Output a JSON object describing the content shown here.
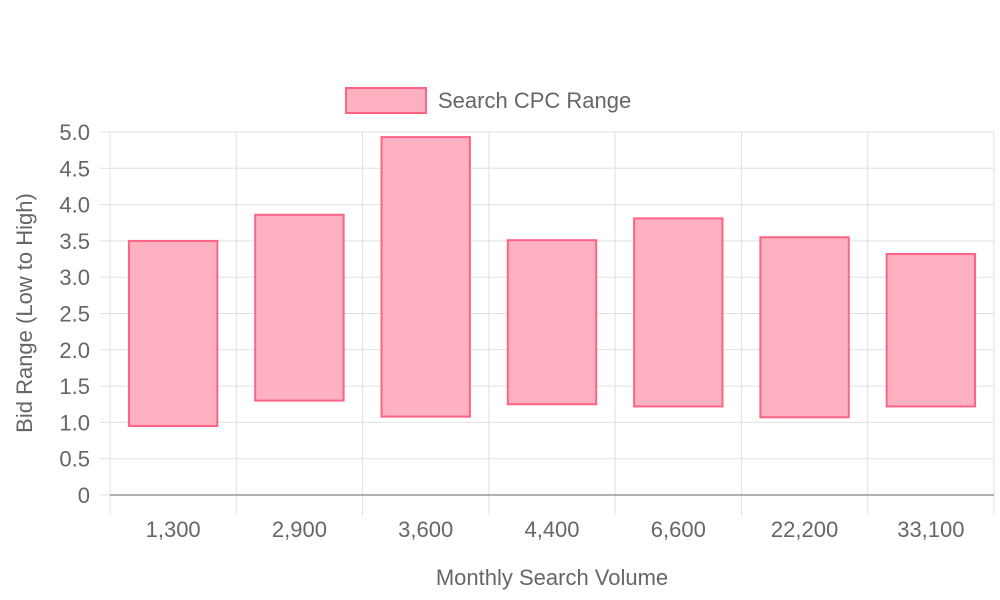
{
  "chart_data": {
    "type": "bar",
    "subtype": "floating-range",
    "categories": [
      "1,300",
      "2,900",
      "3,600",
      "4,400",
      "6,600",
      "22,200",
      "33,100"
    ],
    "series": [
      {
        "name": "Search CPC Range",
        "low": [
          0.95,
          1.3,
          1.08,
          1.25,
          1.22,
          1.07,
          1.22
        ],
        "high": [
          3.5,
          3.86,
          4.93,
          3.51,
          3.81,
          3.55,
          3.32
        ]
      }
    ],
    "xlabel": "Monthly Search Volume",
    "ylabel": "Bid Range (Low to High)",
    "ylim": [
      0,
      5
    ],
    "yticks": [
      "0",
      "0.5",
      "1.0",
      "1.5",
      "2.0",
      "2.5",
      "3.0",
      "3.5",
      "4.0",
      "4.5",
      "5.0"
    ],
    "grid": true,
    "legend_position": "top-center",
    "colors": {
      "bar_fill": "#ffb1c1",
      "bar_stroke": "#ff6384",
      "grid": "#e0e0e0",
      "axis": "#999999",
      "text": "#666666"
    }
  }
}
